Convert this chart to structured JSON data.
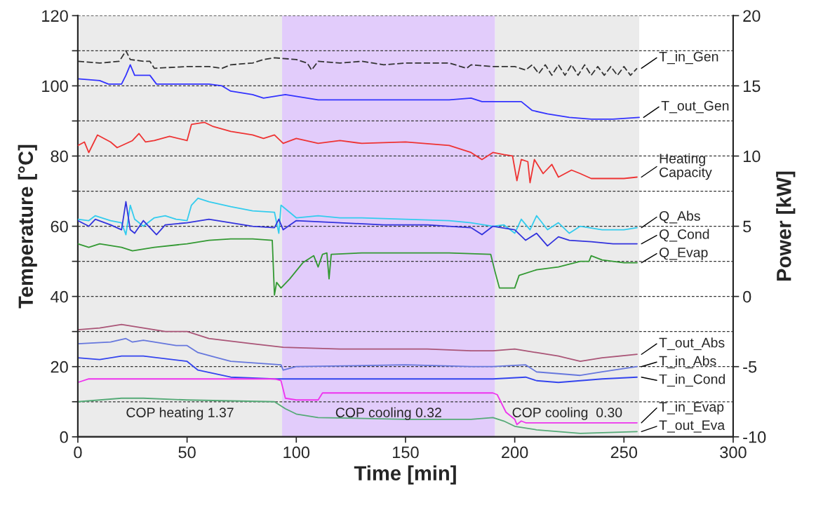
{
  "chart_data": {
    "type": "line",
    "xlabel": "Time [min]",
    "ylabel": "Temperature [°C]",
    "y2label": "Power [kW]",
    "xlim": [
      0,
      300
    ],
    "xticks": [
      0,
      50,
      100,
      150,
      200,
      250,
      300
    ],
    "ylim": [
      0,
      120
    ],
    "yticks": [
      0,
      {
        "value": 10,
        "label": null
      },
      20,
      {
        "value": 30,
        "label": null
      },
      40,
      {
        "value": 50,
        "label": null
      },
      60,
      {
        "value": 70,
        "label": null
      },
      80,
      {
        "value": 90,
        "label": null
      },
      100,
      {
        "value": 110,
        "label": null
      },
      120
    ],
    "y2lim": [
      -10,
      20
    ],
    "y2ticks": [
      -10,
      -5,
      0,
      5,
      10,
      15,
      20
    ],
    "grid": "y",
    "legend": false,
    "marker": "none",
    "bands": [
      {
        "axis": "x",
        "from": 0,
        "to": 93.5,
        "label": "COP heating 1.37",
        "color": "#ebebeb"
      },
      {
        "axis": "x",
        "from": 93.5,
        "to": 191,
        "label": "COP cooling 0.32",
        "color": "#e2ccfb"
      },
      {
        "axis": "x",
        "from": 191,
        "to": 257,
        "label": "COP cooling  0.30",
        "color": "#ebebeb"
      }
    ],
    "series": [
      {
        "name": "T_in_Gen",
        "color": "#333333",
        "line_style": "dashed",
        "x": [
          0,
          10,
          19,
          22,
          24,
          30,
          33,
          35,
          50,
          60,
          66,
          70,
          80,
          85,
          90,
          100,
          105,
          107,
          110,
          120,
          130,
          140,
          150,
          160,
          170,
          178,
          180,
          190,
          200,
          205,
          208,
          211,
          214,
          217,
          220,
          223,
          226,
          229,
          232,
          235,
          238,
          241,
          244,
          247,
          250,
          253,
          256
        ],
        "values": [
          107,
          106.5,
          107,
          110,
          107.5,
          107,
          107,
          105,
          105.5,
          105.5,
          105,
          106,
          106.5,
          107.5,
          108,
          107.5,
          106.5,
          104.5,
          107,
          106.5,
          107,
          106,
          106.5,
          106.5,
          106.5,
          105,
          106,
          105.5,
          105.5,
          104.5,
          106,
          103.5,
          106,
          103,
          106,
          103,
          106,
          103,
          106,
          103,
          105.5,
          103,
          105.5,
          103,
          105.5,
          103,
          105
        ]
      },
      {
        "name": "T_out_Gen",
        "color": "#3333ff",
        "x": [
          0,
          10,
          14,
          20,
          22,
          24,
          26,
          33,
          36,
          60,
          66,
          70,
          80,
          85,
          90,
          95,
          110,
          130,
          150,
          170,
          180,
          185,
          200,
          203,
          208,
          215,
          225,
          235,
          245,
          257
        ],
        "values": [
          102,
          101.5,
          100.5,
          100.5,
          103,
          106,
          103,
          103,
          100.5,
          100.5,
          100,
          98.5,
          97.5,
          96.5,
          97,
          97.5,
          96,
          96,
          96,
          96,
          96.5,
          95.5,
          95.5,
          95.5,
          93,
          92,
          91,
          90.5,
          90.5,
          91
        ]
      },
      {
        "name": "Heating\nCapacity",
        "color": "#ee3333",
        "axis": "y2",
        "x": [
          0,
          3,
          5,
          9,
          15,
          18,
          25,
          28,
          31,
          35,
          42,
          50,
          52,
          58,
          62,
          70,
          80,
          85,
          90,
          94,
          100,
          110,
          120,
          130,
          150,
          170,
          180,
          185,
          190,
          195,
          199,
          201,
          203,
          206,
          207,
          209,
          213,
          217,
          220,
          226,
          230,
          235,
          240,
          250,
          256
        ],
        "values": [
          10.75,
          11,
          10.25,
          11.5,
          11,
          10.6,
          11.1,
          11.6,
          11,
          11.1,
          11.4,
          11.1,
          12.25,
          12.4,
          12.1,
          11.75,
          11.5,
          11.25,
          11.5,
          10.9,
          11.25,
          10.9,
          11.1,
          10.9,
          11,
          10.75,
          10.25,
          9.75,
          10.25,
          10.1,
          10,
          8.25,
          9.75,
          9.6,
          8.1,
          9.75,
          8.75,
          9.4,
          8.5,
          9,
          8.75,
          8.4,
          8.4,
          8.4,
          8.5
        ]
      },
      {
        "name": "Q_Abs",
        "color": "#33ccee",
        "axis": "y2",
        "x": [
          0,
          5,
          8,
          15,
          20,
          22,
          24,
          26,
          30,
          35,
          40,
          45,
          50,
          52,
          55,
          60,
          70,
          80,
          90,
          92,
          93,
          100,
          110,
          120,
          130,
          150,
          170,
          180,
          190,
          195,
          200,
          203,
          207,
          210,
          215,
          220,
          225,
          230,
          240,
          250,
          256
        ],
        "values": [
          5.5,
          5.4,
          5.75,
          5.4,
          5.25,
          4.4,
          6.5,
          5.5,
          5,
          5.6,
          5.75,
          5.5,
          5.4,
          6.5,
          7,
          6.75,
          6.4,
          6.1,
          6,
          4.5,
          6.5,
          5.6,
          5.75,
          5.6,
          5.6,
          5.5,
          5.4,
          5.25,
          5,
          5.1,
          4.5,
          5.5,
          4.75,
          5.75,
          4.75,
          5.25,
          4.5,
          5,
          4.75,
          4.75,
          4.9
        ]
      },
      {
        "name": "Q_Cond",
        "color": "#3333dd",
        "axis": "y2",
        "x": [
          0,
          5,
          8,
          15,
          20,
          22,
          24,
          26,
          30,
          36,
          40,
          50,
          60,
          70,
          80,
          90,
          92,
          94,
          100,
          120,
          140,
          160,
          180,
          185,
          190,
          200,
          205,
          210,
          215,
          220,
          225,
          235,
          245,
          256
        ],
        "values": [
          5.4,
          5,
          5.5,
          5.1,
          4.75,
          6.75,
          4.75,
          4.5,
          5.4,
          4.4,
          5.1,
          5.25,
          5.5,
          5.25,
          5,
          4.9,
          5.5,
          4.75,
          5.4,
          5.25,
          5.1,
          5.1,
          4.9,
          4.4,
          5,
          4.75,
          4,
          4.5,
          3.6,
          4.25,
          4,
          3.9,
          3.75,
          3.75
        ]
      },
      {
        "name": "Q_Evap",
        "color": "#339933",
        "axis": "y2",
        "x": [
          0,
          5,
          10,
          20,
          25,
          35,
          50,
          60,
          70,
          80,
          89,
          90,
          91,
          93,
          97,
          103,
          108,
          110,
          112,
          114,
          115,
          116,
          130,
          150,
          170,
          189,
          191,
          193,
          200,
          202,
          210,
          220,
          230,
          234,
          235,
          240,
          250,
          256
        ],
        "values": [
          3.75,
          3.5,
          3.75,
          3.5,
          3.25,
          3.5,
          3.75,
          4,
          4.1,
          4.1,
          4,
          0.1,
          1,
          0.6,
          1.25,
          2.4,
          2.9,
          2.1,
          3,
          3.1,
          1.25,
          3,
          3.1,
          3.1,
          3.1,
          3,
          1.75,
          0.6,
          0.6,
          1.5,
          1.9,
          2.1,
          2.5,
          2.5,
          2.9,
          2.6,
          2.4,
          2.4
        ]
      },
      {
        "name": "T_out_Abs",
        "color": "#aa5577",
        "x": [
          0,
          10,
          20,
          30,
          40,
          50,
          60,
          80,
          94,
          120,
          160,
          180,
          190,
          200,
          210,
          220,
          230,
          240,
          256
        ],
        "values": [
          30.5,
          31,
          32,
          31,
          30,
          30,
          28,
          26.5,
          25.5,
          25,
          25,
          24.5,
          24.5,
          25,
          24,
          23,
          21.5,
          22.5,
          23.5
        ]
      },
      {
        "name": "T_in_Abs",
        "color": "#6677dd",
        "x": [
          0,
          15,
          22,
          25,
          30,
          45,
          50,
          55,
          70,
          93,
          94,
          100,
          150,
          180,
          190,
          205,
          210,
          220,
          230,
          240,
          256
        ],
        "values": [
          26.5,
          27,
          28,
          27,
          27.5,
          26,
          26,
          24,
          21.5,
          20.5,
          19,
          20,
          20.5,
          20,
          20,
          20.5,
          18.5,
          18,
          17.5,
          18.5,
          20
        ]
      },
      {
        "name": "T_in_Cond",
        "color": "#3344ee",
        "x": [
          0,
          10,
          20,
          30,
          50,
          55,
          70,
          90,
          110,
          150,
          190,
          205,
          210,
          220,
          230,
          240,
          256
        ],
        "values": [
          22.5,
          22,
          23,
          23,
          21.5,
          19,
          17,
          16.5,
          16.5,
          16.5,
          16.5,
          17,
          16,
          15.5,
          16,
          16.5,
          17
        ]
      },
      {
        "name": "T_in_Evap",
        "color": "#ee33ee",
        "x": [
          0,
          5,
          90,
          93,
          95,
          100,
          110,
          112,
          115,
          190,
          192,
          196,
          200,
          201,
          203,
          205,
          256
        ],
        "values": [
          15.5,
          16.5,
          16.5,
          16,
          11,
          10.5,
          10.5,
          12.5,
          12.5,
          12.5,
          12,
          7,
          5,
          3.5,
          4.5,
          4,
          4
        ]
      },
      {
        "name": "T_out_Eva",
        "color": "#55aa77",
        "x": [
          0,
          20,
          30,
          50,
          90,
          95,
          100,
          110,
          150,
          180,
          190,
          195,
          200,
          210,
          230,
          256
        ],
        "values": [
          10,
          11,
          11,
          10.5,
          10,
          8,
          6.5,
          5.5,
          5,
          5,
          5.5,
          4.5,
          3,
          2,
          1,
          1.5
        ]
      }
    ]
  }
}
